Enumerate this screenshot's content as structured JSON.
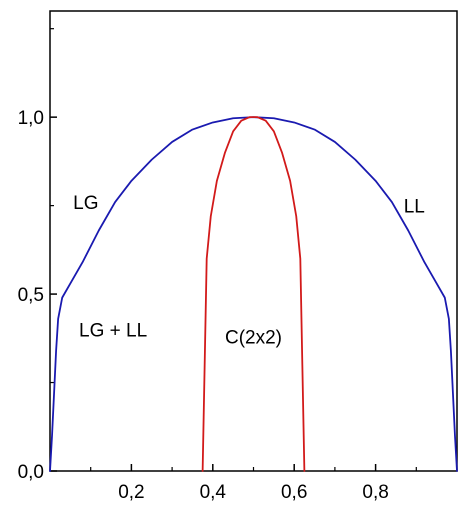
{
  "chart_data": {
    "type": "line",
    "xlim": [
      0.0,
      1.0
    ],
    "ylim": [
      0.0,
      1.3
    ],
    "x_ticks": [
      {
        "value": 0.2,
        "label": "0,2"
      },
      {
        "value": 0.4,
        "label": "0,4"
      },
      {
        "value": 0.6,
        "label": "0,6"
      },
      {
        "value": 0.8,
        "label": "0,8"
      }
    ],
    "x_minor_ticks": [
      0.1,
      0.3,
      0.5,
      0.7,
      0.9
    ],
    "y_ticks": [
      {
        "value": 0.0,
        "label": "0,0"
      },
      {
        "value": 0.5,
        "label": "0,5"
      },
      {
        "value": 1.0,
        "label": "1,0"
      }
    ],
    "y_minor_ticks": [
      0.25,
      0.75,
      1.25
    ],
    "grid": false,
    "series": [
      {
        "color": "#1a1ab0",
        "x": [
          0.0,
          0.005,
          0.01,
          0.015,
          0.02,
          0.03,
          0.05,
          0.08,
          0.12,
          0.16,
          0.2,
          0.25,
          0.3,
          0.35,
          0.4,
          0.45,
          0.5,
          0.55,
          0.6,
          0.65,
          0.7,
          0.75,
          0.8,
          0.84,
          0.88,
          0.92,
          0.95,
          0.97,
          0.98,
          0.985,
          0.99,
          0.995,
          1.0
        ],
        "y": [
          0.0,
          0.1,
          0.22,
          0.34,
          0.43,
          0.49,
          0.53,
          0.59,
          0.68,
          0.76,
          0.82,
          0.88,
          0.93,
          0.965,
          0.985,
          0.997,
          1.0,
          0.997,
          0.985,
          0.965,
          0.93,
          0.88,
          0.82,
          0.76,
          0.68,
          0.59,
          0.53,
          0.49,
          0.43,
          0.34,
          0.22,
          0.1,
          0.0
        ]
      },
      {
        "color": "#d21a1a",
        "x": [
          0.375,
          0.38,
          0.385,
          0.395,
          0.41,
          0.43,
          0.45,
          0.47,
          0.49,
          0.5,
          0.51,
          0.53,
          0.55,
          0.57,
          0.59,
          0.605,
          0.615,
          0.62,
          0.625
        ],
        "y": [
          0.0,
          0.3,
          0.6,
          0.72,
          0.82,
          0.9,
          0.96,
          0.99,
          1.0,
          1.0,
          1.0,
          0.99,
          0.96,
          0.9,
          0.82,
          0.72,
          0.6,
          0.3,
          0.0
        ]
      }
    ],
    "annotations": [
      {
        "text": "LG",
        "x": 0.088,
        "y": 0.74
      },
      {
        "text": "LL",
        "x": 0.895,
        "y": 0.73
      },
      {
        "text": "LG + LL",
        "x": 0.155,
        "y": 0.38
      },
      {
        "text": "C(2x2)",
        "x": 0.5,
        "y": 0.36
      }
    ]
  }
}
